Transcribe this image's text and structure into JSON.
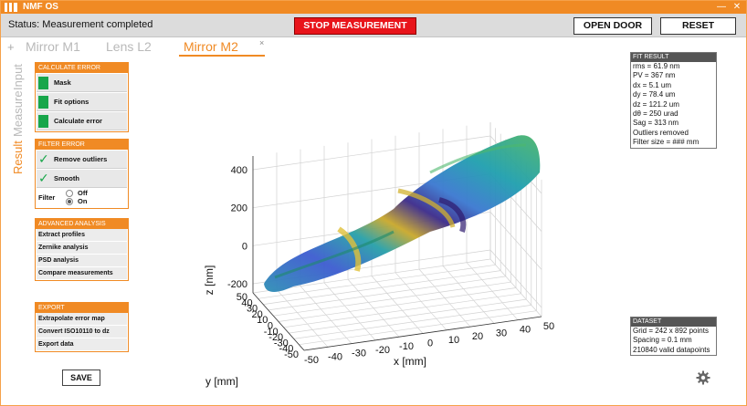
{
  "app": {
    "title": "NMF OS"
  },
  "status": {
    "text": "Status: Measurement completed"
  },
  "toolbar": {
    "stop_label": "STOP MEASUREMENT",
    "open_door_label": "OPEN DOOR",
    "reset_label": "RESET"
  },
  "window_controls": {
    "minimize": "—",
    "close": "✕"
  },
  "tabs": {
    "add": "+",
    "items": [
      {
        "label": "Mirror M1"
      },
      {
        "label": "Lens L2"
      },
      {
        "label": "Mirror M2",
        "active": true
      }
    ],
    "close_glyph": "×"
  },
  "side_tabs": {
    "input": "Input",
    "measure": "Measure",
    "result": "Result"
  },
  "calculate_error": {
    "header": "CALCULATE ERROR",
    "items": [
      "Mask",
      "Fit options",
      "Calculate error"
    ]
  },
  "filter_error": {
    "header": "FILTER ERROR",
    "items": [
      "Remove outliers",
      "Smooth"
    ],
    "filter_label": "Filter",
    "options": [
      "Off",
      "On"
    ],
    "selected": "On"
  },
  "advanced_analysis": {
    "header": "ADVANCED ANALYSIS",
    "items": [
      "Extract profiles",
      "Zernike analysis",
      "PSD analysis",
      "Compare measurements"
    ]
  },
  "export": {
    "header": "EXPORT",
    "items": [
      "Extrapolate error map",
      "Convert ISO10110 to dz",
      "Export data"
    ]
  },
  "save_label": "SAVE",
  "fit_result": {
    "header": "FIT RESULT",
    "lines": [
      "rms   = 61.9 nm",
      "PV     = 367 nm",
      "dx     = 5.1 um",
      "dy     = 78.4 um",
      "dz     = 121.2 um",
      "dθ     = 250 urad",
      "Sag   = 313 nm",
      "Outliers removed",
      "Filter size = ### mm"
    ]
  },
  "dataset": {
    "header": "DATASET",
    "lines": [
      "Grid = 242 x 892 points",
      "Spacing = 0.1 mm",
      "210840 valid datapoints"
    ]
  },
  "icons": {
    "logo": "nmf-logo-icon",
    "settings": "gear-icon"
  },
  "colors": {
    "accent": "#f08a24",
    "stop": "#e8141a",
    "green": "#18a64a"
  },
  "chart_data": {
    "type": "surface",
    "zlabel": "z [nm]",
    "xlabel": "x [mm]",
    "ylabel": "y [mm]",
    "z_ticks": [
      "400",
      "200",
      "0",
      "-200"
    ],
    "x_ticks": [
      "-50",
      "-40",
      "-30",
      "-20",
      "-10",
      "0",
      "10",
      "20",
      "30",
      "40",
      "50"
    ],
    "y_ticks": [
      "-50",
      "-40",
      "-30",
      "-20",
      "-10",
      "0",
      "10",
      "20",
      "30",
      "40",
      "50"
    ],
    "grid": true,
    "colormap": [
      "#3b1d6e",
      "#3c5bd0",
      "#1f9fae",
      "#44b86a",
      "#c9b12b",
      "#f2d52d"
    ]
  }
}
